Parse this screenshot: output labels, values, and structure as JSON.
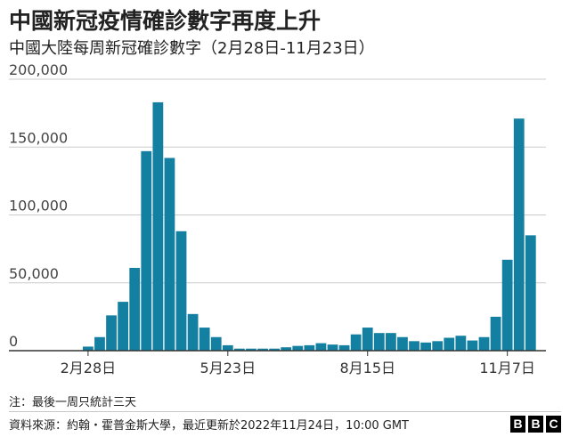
{
  "title": "中國新冠疫情確診數字再度上升",
  "subtitle": "中國大陸每周新冠確診數字（2月28日-11月23日）",
  "note": "注：最後一周只統計三天",
  "source": "資料來源：約翰・霍普金斯大學，最近更新於2022年11月24日，10:00 GMT",
  "logo": [
    "B",
    "B",
    "C"
  ],
  "colors": {
    "bar": "#1380A1",
    "grid": "#cbcbcb",
    "axis": "#333333",
    "text": "#222222"
  },
  "chart_data": {
    "type": "bar",
    "ylim": [
      0,
      200000
    ],
    "yticks": [
      0,
      50000,
      100000,
      150000,
      200000
    ],
    "ytick_labels": [
      "0",
      "50,000",
      "100,000",
      "150,000",
      "200,000"
    ],
    "xtick_labels": [
      {
        "label": "2月28日",
        "index": 0
      },
      {
        "label": "5月23日",
        "index": 12
      },
      {
        "label": "8月15日",
        "index": 24
      },
      {
        "label": "11月7日",
        "index": 36
      }
    ],
    "grid": true,
    "values": [
      3000,
      10000,
      26000,
      36000,
      61000,
      147000,
      183000,
      142000,
      88000,
      27000,
      17000,
      10000,
      4000,
      1500,
      1500,
      1500,
      1500,
      2500,
      3500,
      4000,
      5500,
      4500,
      4000,
      12000,
      17000,
      13000,
      13000,
      10000,
      7000,
      6000,
      7000,
      9500,
      11000,
      7500,
      10000,
      25000,
      67000,
      171000,
      85000
    ]
  }
}
